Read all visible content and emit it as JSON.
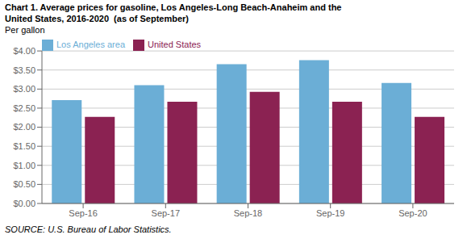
{
  "chart_data": {
    "type": "bar",
    "title": [
      "Chart 1. Average prices for gasoline, Los Angeles-Long Beach-Anaheim and the",
      "United States, 2016-2020  (as of September)"
    ],
    "y_label": "Per gallon",
    "annotations": [
      "SOURCE: U.S. Bureau of Labor Statistics."
    ],
    "categories": [
      "Sep-16",
      "Sep-17",
      "Sep-18",
      "Sep-19",
      "Sep-20"
    ],
    "series": [
      {
        "name": "Los Angeles area",
        "color": "#6BAED6",
        "values": [
          2.71,
          3.1,
          3.65,
          3.76,
          3.16
        ]
      },
      {
        "name": "United States",
        "color": "#8B2252",
        "values": [
          2.27,
          2.67,
          2.93,
          2.67,
          2.27
        ]
      }
    ],
    "ylim": [
      0,
      4.0
    ],
    "yticks": [
      {
        "value": 0.0,
        "label": "$0.00"
      },
      {
        "value": 0.5,
        "label": "$0.50"
      },
      {
        "value": 1.0,
        "label": "$1.00"
      },
      {
        "value": 1.5,
        "label": "$1.50"
      },
      {
        "value": 2.0,
        "label": "$2.00"
      },
      {
        "value": 2.5,
        "label": "$2.50"
      },
      {
        "value": 3.0,
        "label": "$3.00"
      },
      {
        "value": 3.5,
        "label": "$3.50"
      },
      {
        "value": 4.0,
        "label": "$4.00"
      }
    ],
    "grid": true,
    "legend": "upper left"
  }
}
